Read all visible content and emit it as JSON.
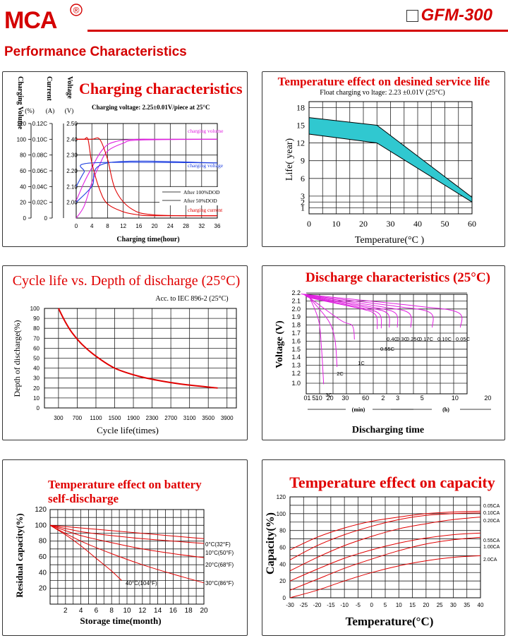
{
  "header": {
    "brand": "MCA",
    "registered": "®",
    "model": "GFM-300",
    "section_title": "Performance Characteristics"
  },
  "colors": {
    "red": "#e00000",
    "magenta": "#e020e0",
    "blue": "#2040e0",
    "cyan": "#30c8d0",
    "grid": "#222"
  },
  "chart_data": [
    {
      "id": "charging",
      "type": "line",
      "title": "Charging characteristics",
      "subtitle": "Charging voltage: 2.25±0.01V/piece at 25°C",
      "axis_titles": {
        "volume": "Charging Volume",
        "current": "Current",
        "voltage": "Voltage"
      },
      "axis_units": {
        "volume": "(%)",
        "current": "(A)",
        "voltage": "(V)"
      },
      "xlabel": "Charging time(hour)",
      "x_ticks": [
        "0",
        "4",
        "8",
        "12",
        "16",
        "20",
        "24",
        "28",
        "32",
        "36"
      ],
      "volume_ticks": [
        "0",
        "20",
        "40",
        "60",
        "80",
        "100",
        "120"
      ],
      "current_ticks": [
        "0",
        "0.02C",
        "0.04C",
        "0.06C",
        "0.08C",
        "0.10C",
        "0.12C"
      ],
      "voltage_ticks": [
        "2.00",
        "2.10",
        "2.20",
        "2.30",
        "2.40",
        "2.50"
      ],
      "xlim": [
        0,
        36
      ],
      "volume_lim": [
        0,
        120
      ],
      "series_labels": {
        "volume": "charging volume",
        "voltage": "charging voltage",
        "current": "charging current"
      },
      "legend": [
        "After 100%DOD",
        "After 50%DOD"
      ],
      "series": [
        {
          "name": "charging volume",
          "axis": "volume",
          "x": [
            0,
            2,
            4,
            6,
            8,
            10,
            12,
            16,
            20,
            36
          ],
          "y": [
            22,
            45,
            64,
            82,
            93,
            97,
            99,
            100,
            100,
            100
          ]
        },
        {
          "name": "charging volume",
          "axis": "volume",
          "x": [
            0,
            2,
            4,
            6,
            8,
            12,
            16,
            36
          ],
          "y": [
            0,
            15,
            45,
            68,
            85,
            95,
            99,
            100
          ]
        },
        {
          "name": "charging voltage",
          "axis": "volume",
          "x": [
            0,
            2,
            4,
            36
          ],
          "y": [
            40,
            58,
            70,
            70
          ]
        },
        {
          "name": "charging voltage",
          "axis": "volume",
          "x": [
            0,
            4,
            8,
            36
          ],
          "y": [
            20,
            40,
            70,
            70
          ]
        },
        {
          "name": "charging current",
          "axis": "volume",
          "x": [
            0,
            2,
            3,
            4,
            6,
            8,
            12,
            16,
            20,
            36
          ],
          "y": [
            100,
            100,
            100,
            70,
            36,
            18,
            8,
            4,
            3,
            3
          ]
        },
        {
          "name": "charging current",
          "axis": "volume",
          "x": [
            0,
            4,
            6,
            8,
            10,
            14,
            20,
            36
          ],
          "y": [
            100,
            100,
            100,
            75,
            36,
            12,
            4,
            3
          ]
        }
      ]
    },
    {
      "id": "service-life",
      "type": "area",
      "title": "Temperature effect on desined service life",
      "subtitle": "Float charging vo ltage: 2.23 ±0.01V (25°C)",
      "xlabel": "Temperature(°C )",
      "ylabel": "Life( year)",
      "x_ticks": [
        "0",
        "10",
        "20",
        "30",
        "40",
        "50",
        "60"
      ],
      "y_ticks": [
        "1",
        "2",
        "3",
        "6",
        "9",
        "12",
        "15",
        "18"
      ],
      "xlim": [
        0,
        60
      ],
      "ylim": [
        0,
        19
      ],
      "upper": {
        "x": [
          0,
          25,
          60
        ],
        "y": [
          16.3,
          15,
          2.8
        ]
      },
      "lower": {
        "x": [
          0,
          25,
          60
        ],
        "y": [
          13.5,
          12,
          2
        ]
      }
    },
    {
      "id": "cycle-life",
      "type": "line",
      "title": "Cycle life vs. Depth of discharge (25°C)",
      "subtitle": "Acc. to IEC 896-2 (25°C)",
      "xlabel": "Cycle life(times)",
      "ylabel": "Depth of discharge(%)",
      "x_ticks": [
        "300",
        "700",
        "1100",
        "1500",
        "1900",
        "2300",
        "2700",
        "3100",
        "3500",
        "3900"
      ],
      "y_ticks": [
        "0",
        "10",
        "20",
        "30",
        "40",
        "50",
        "60",
        "70",
        "80",
        "90",
        "100"
      ],
      "xlim": [
        0,
        4100
      ],
      "ylim": [
        0,
        100
      ],
      "series": [
        {
          "x": [
            300,
            450,
            600,
            800,
            1100,
            1500,
            2000,
            2500,
            3000,
            3700
          ],
          "y": [
            100,
            86,
            75,
            64,
            52,
            40,
            32,
            27,
            23.5,
            20
          ]
        }
      ]
    },
    {
      "id": "discharge",
      "type": "line",
      "title": "Discharge characteristics (25°C)",
      "xlabel": "Discharging time",
      "ylabel": "Voltage (V)",
      "x_ticks": [
        "0",
        "1",
        "5",
        "10",
        "20",
        "30",
        "60",
        "2",
        "3",
        "5",
        "10",
        "20"
      ],
      "x_units": [
        "(min)",
        "(h)"
      ],
      "y_ticks": [
        "1.0",
        "1.2",
        "1.3",
        "1.4",
        "1.5",
        "1.6",
        "1.7",
        "1.8",
        "1.9",
        "2.0",
        "2.1",
        "2.2"
      ],
      "curves": [
        {
          "name": "3C",
          "end_x": 6.5,
          "end_y": 0.98
        },
        {
          "name": "2C",
          "end_x": 11.5,
          "end_y": 1.28
        },
        {
          "name": "1C",
          "end_x": 18,
          "end_y": 1.62
        },
        {
          "name": "0.55C",
          "end_x": 26.5,
          "end_y": 1.75
        },
        {
          "name": "0.4C",
          "end_x": 28,
          "end_y": 1.76
        },
        {
          "name": "0.3C",
          "end_x": 31,
          "end_y": 1.77
        },
        {
          "name": "0.25C",
          "end_x": 34,
          "end_y": 1.77
        },
        {
          "name": "0.17C",
          "end_x": 39,
          "end_y": 1.77
        },
        {
          "name": "0.10C",
          "end_x": 47,
          "end_y": 1.77
        },
        {
          "name": "0.05C",
          "end_x": 57.5,
          "end_y": 1.77
        }
      ]
    },
    {
      "id": "self-discharge",
      "type": "line",
      "title": "Temperature effect on battery self-discharge",
      "xlabel": "Storage time(month)",
      "ylabel": "Residual capacity(%)",
      "x_ticks": [
        "2",
        "4",
        "6",
        "8",
        "10",
        "12",
        "14",
        "16",
        "18",
        "20"
      ],
      "y_ticks": [
        "20",
        "40",
        "60",
        "80",
        "100",
        "120"
      ],
      "xlim": [
        0,
        20
      ],
      "ylim": [
        0,
        120
      ],
      "series": [
        {
          "name": "0°C(32°F)",
          "x": [
            0,
            20
          ],
          "y": [
            100,
            83
          ]
        },
        {
          "name": "10°C(50°F)",
          "x": [
            0,
            4,
            8,
            12,
            16,
            20
          ],
          "y": [
            100,
            92,
            87,
            83,
            80,
            77
          ]
        },
        {
          "name": "20°C(68°F)",
          "x": [
            0,
            4,
            8,
            12,
            16,
            20
          ],
          "y": [
            100,
            87,
            78,
            70,
            64,
            59
          ]
        },
        {
          "name": "30°C(86°F)",
          "x": [
            0,
            4,
            8,
            12,
            16,
            20
          ],
          "y": [
            100,
            80,
            64,
            50,
            38,
            27
          ]
        },
        {
          "name": "40°C(104°F)",
          "x": [
            0,
            2,
            4,
            6,
            8,
            9.3
          ],
          "y": [
            100,
            88,
            74,
            58,
            42,
            30
          ]
        }
      ]
    },
    {
      "id": "capacity",
      "type": "line",
      "title": "Temperature effect on capacity",
      "xlabel": "Temperature(°C)",
      "ylabel": "Capacity(%)",
      "x_ticks": [
        "-30",
        "-25",
        "-20",
        "-15",
        "-10",
        "-5",
        "0",
        "5",
        "10",
        "15",
        "20",
        "25",
        "30",
        "35",
        "40"
      ],
      "y_ticks": [
        "0",
        "20",
        "40",
        "60",
        "80",
        "100",
        "120"
      ],
      "xlim": [
        -30,
        40
      ],
      "ylim": [
        0,
        120
      ],
      "series": [
        {
          "name": "0.05CA",
          "x": [
            -30,
            -20,
            -10,
            0,
            10,
            20,
            30,
            40
          ],
          "y": [
            57,
            72,
            83,
            91,
            96,
            100,
            102,
            103
          ]
        },
        {
          "name": "0.10CA",
          "x": [
            -30,
            -20,
            -10,
            0,
            10,
            20,
            30,
            40
          ],
          "y": [
            45,
            62,
            75,
            85,
            93,
            98,
            100,
            101
          ]
        },
        {
          "name": "0.20CA",
          "x": [
            -30,
            -20,
            -10,
            0,
            10,
            20,
            30,
            40
          ],
          "y": [
            32,
            48,
            62,
            73,
            82,
            88,
            93,
            96
          ]
        },
        {
          "name": "0.55CA",
          "x": [
            -30,
            -20,
            -10,
            0,
            10,
            20,
            30,
            40
          ],
          "y": [
            20,
            34,
            47,
            57,
            65,
            71,
            75,
            77
          ]
        },
        {
          "name": "1.00CA",
          "x": [
            -30,
            -20,
            -10,
            0,
            10,
            20,
            30,
            40
          ],
          "y": [
            9,
            22,
            35,
            46,
            56,
            64,
            69,
            72
          ]
        },
        {
          "name": "2.0CA",
          "x": [
            -30,
            -20,
            -10,
            0,
            10,
            20,
            30,
            40
          ],
          "y": [
            0,
            9,
            20,
            30,
            38,
            44,
            48,
            50
          ]
        }
      ]
    }
  ]
}
